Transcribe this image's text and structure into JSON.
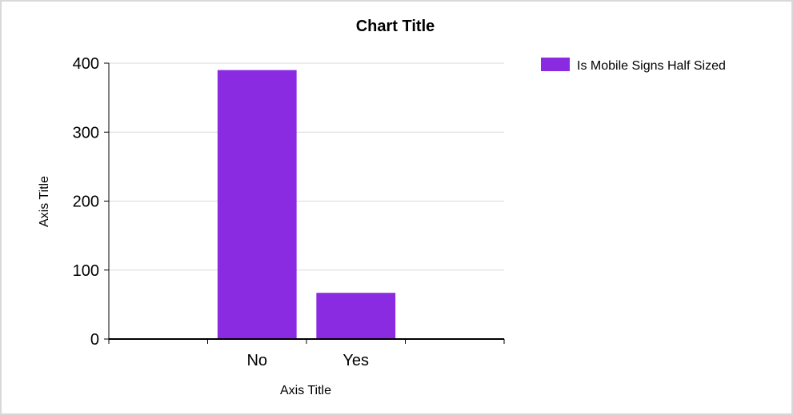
{
  "chart_data": {
    "type": "bar",
    "title": "Chart Title",
    "xlabel": "Axis Title",
    "ylabel": "Axis Title",
    "categories": [
      "",
      "No",
      "Yes",
      ""
    ],
    "series": [
      {
        "name": "Is Mobile Signs Half Sized",
        "values": [
          null,
          390,
          67,
          null
        ],
        "color": "#8a2be2"
      }
    ],
    "ylim": [
      0,
      400
    ],
    "yticks": [
      0,
      100,
      200,
      300,
      400
    ],
    "grid": true,
    "legend": "top-right"
  }
}
